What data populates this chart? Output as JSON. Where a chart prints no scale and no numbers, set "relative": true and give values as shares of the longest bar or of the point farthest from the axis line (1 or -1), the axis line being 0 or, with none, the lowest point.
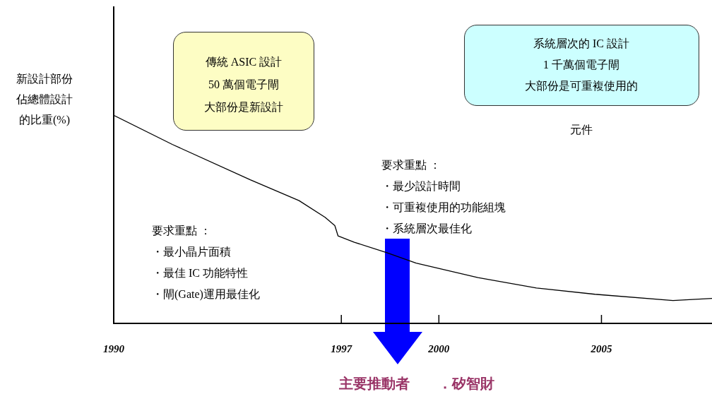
{
  "chart_data": {
    "type": "line",
    "relative": true,
    "ylabel": "新設計部份佔總體設計的比重(%)",
    "x": [
      1990,
      1991.8,
      1994.2,
      1995.7,
      1996.5,
      1996.8,
      1996.9,
      1997.4,
      1998.4,
      1999.3,
      2001.2,
      2003.0,
      2004.8,
      2007.2,
      2008.4
    ],
    "series": [
      {
        "color": "#000000",
        "values": [
          1,
          0.86,
          0.69,
          0.59,
          0.51,
          0.47,
          0.42,
          0.39,
          0.34,
          0.29,
          0.22,
          0.17,
          0.14,
          0.11,
          0.12
        ]
      }
    ],
    "xlim": [
      1990,
      2008.4
    ],
    "xticks": [
      1990,
      1997,
      2000,
      2005
    ],
    "grid": false,
    "legend": false,
    "marker": "none",
    "line_style": "solid",
    "annotations": [
      "傳統 ASIC 設計",
      "50 萬個電子閘",
      "大部份是新設計",
      "系統層次的 IC 設計",
      "1 千萬個電子閘",
      "大部份是可重複使用的",
      "元件",
      "要求重點 ：",
      "・最少設計時間",
      "・可重複使用的功能組塊",
      "・系統層次最佳化",
      "要求重點 ：",
      "・最小晶片面積",
      "・最佳 IC 功能特性",
      "・閘(Gate)運用最佳化",
      "主要推動者　　．矽智財"
    ]
  }
}
